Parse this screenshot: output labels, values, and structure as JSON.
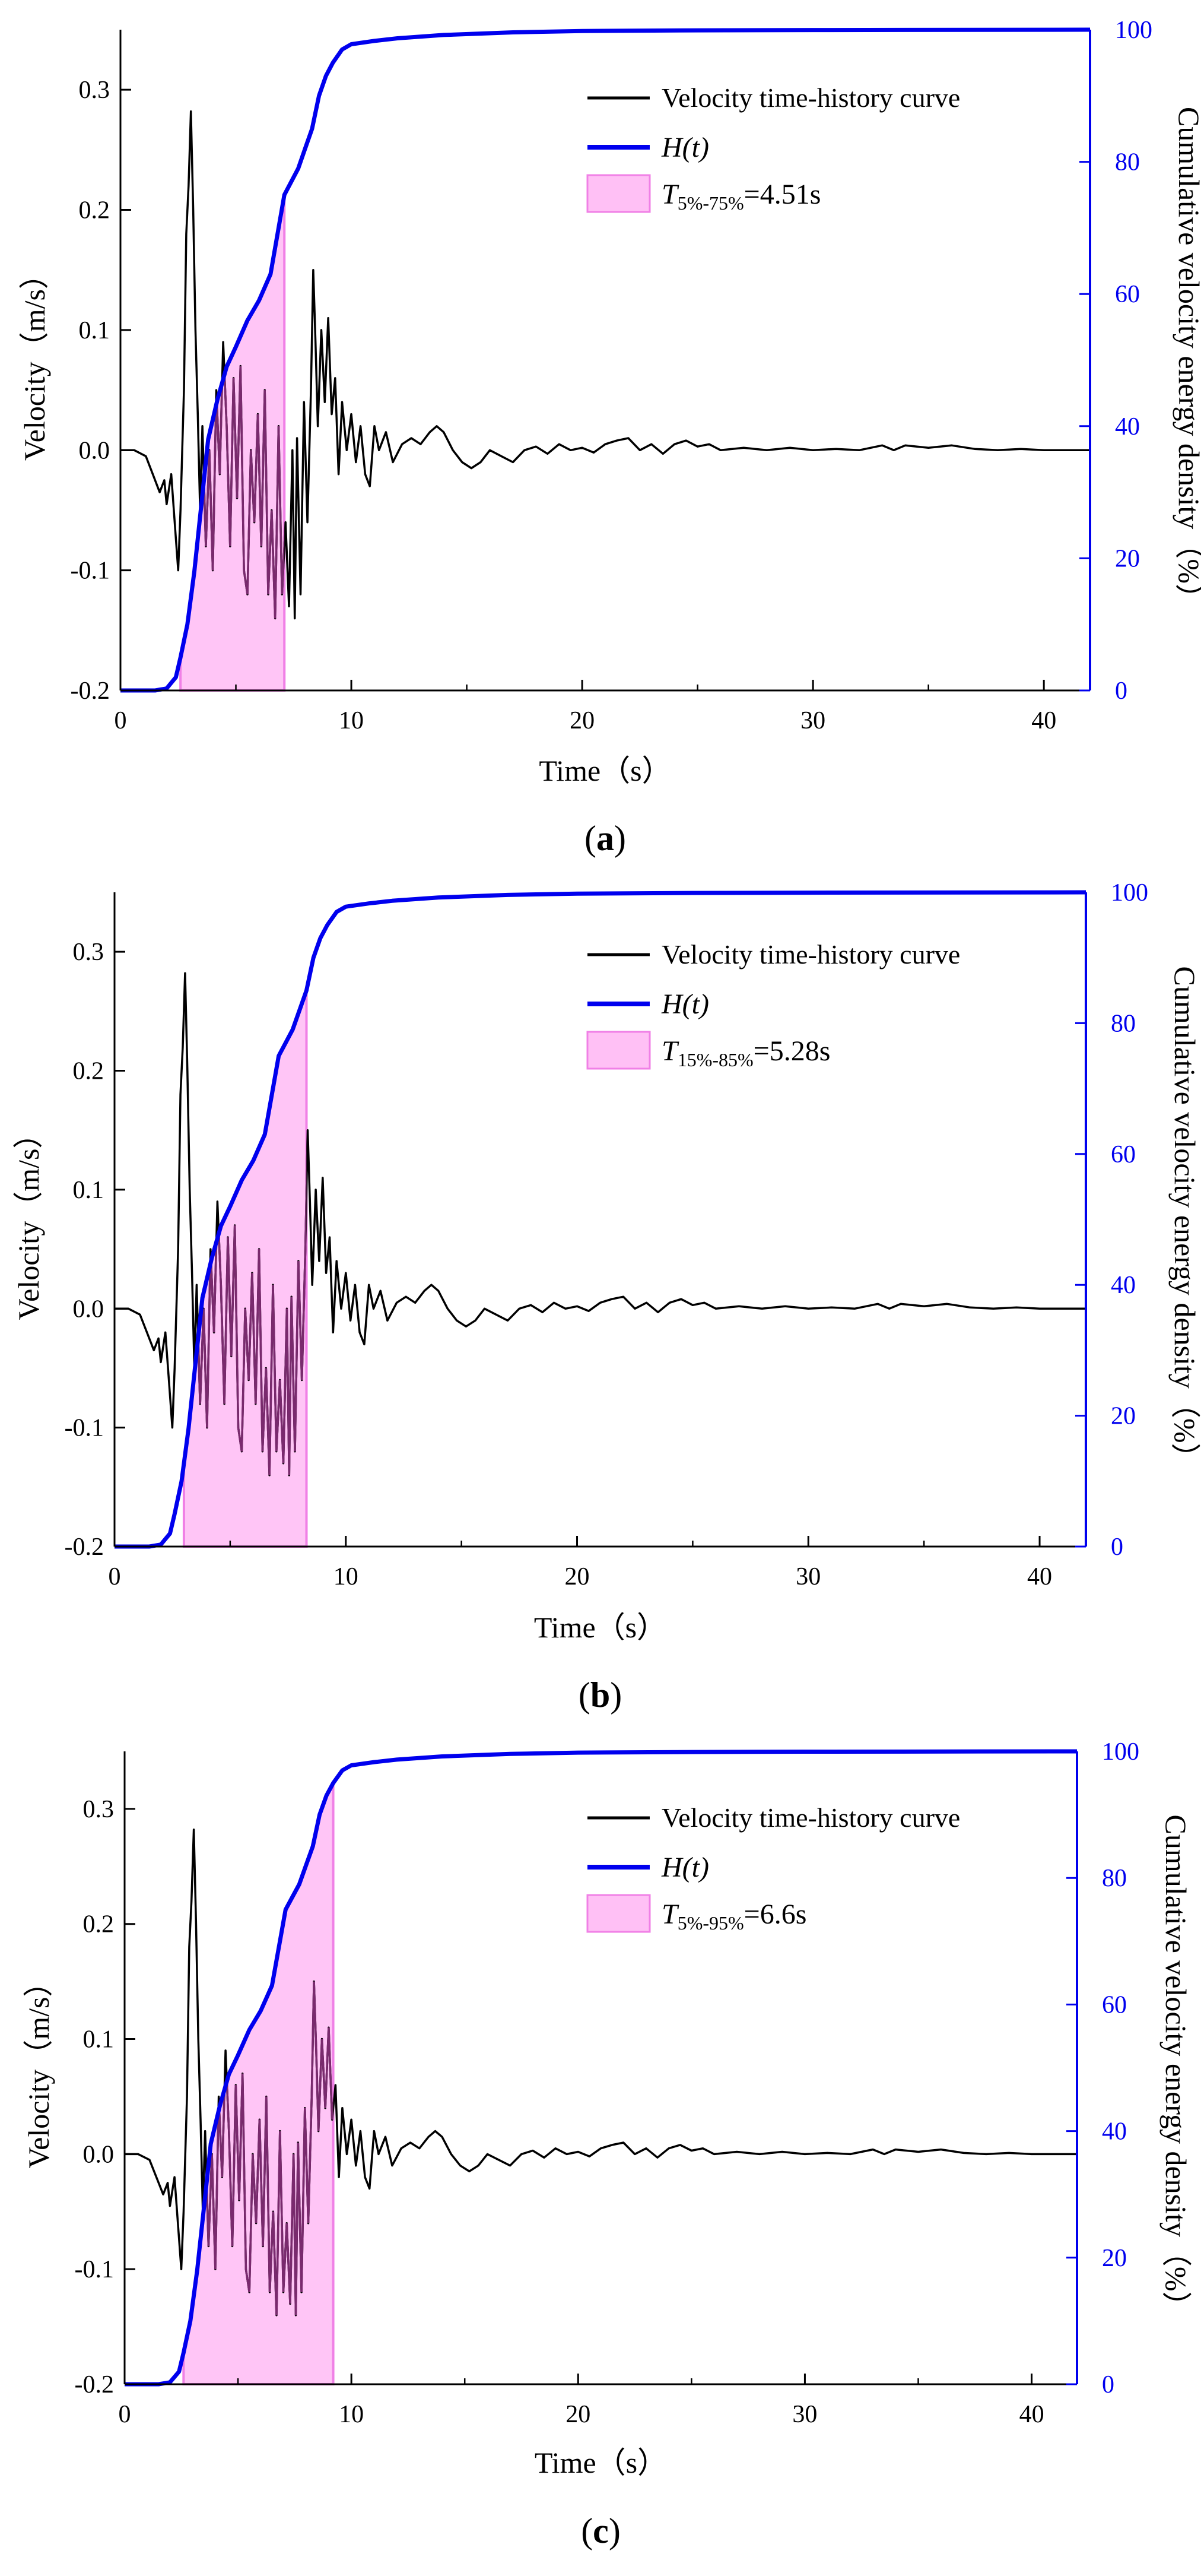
{
  "figure": {
    "x_axis_label": "Time（s）",
    "left_axis_label": "Velocity（m/s）",
    "right_axis_label": "Cumulative velocity energy density（%）",
    "legend_velocity": "Velocity time-history curve",
    "legend_h_prefix": "H",
    "legend_h_suffix": "(t)",
    "colors": {
      "velocity": "#000000",
      "h_curve": "#0000ee",
      "fill": "#ffc0f5",
      "fill_edge": "#f080e6",
      "right_axis": "#0000ee"
    }
  },
  "panels": [
    {
      "label": "a",
      "legend": {
        "prefix": "T",
        "subscript": "5%-75%",
        "value": "=4.51s"
      },
      "shade_range": [
        2.6,
        7.1
      ]
    },
    {
      "label": "b",
      "legend": {
        "prefix": "T",
        "subscript": "15%-85%",
        "value": "=5.28s"
      },
      "shade_range": [
        3.0,
        8.3
      ]
    },
    {
      "label": "c",
      "legend": {
        "prefix": "T",
        "subscript": "5%-95%",
        "value": "=6.6s"
      },
      "shade_range": [
        2.6,
        9.2
      ]
    }
  ],
  "chart_data": [
    {
      "type": "line",
      "panel": "a",
      "xlabel": "Time（s）",
      "ylabel": "Velocity（m/s）",
      "y2label": "Cumulative velocity energy density（%）",
      "xlim": [
        0,
        42
      ],
      "ylim": [
        -0.2,
        0.35
      ],
      "y2lim": [
        0,
        100
      ],
      "xticks": [
        0,
        10,
        20,
        30,
        40
      ],
      "yticks": [
        -0.2,
        -0.1,
        0.0,
        0.1,
        0.2,
        0.3
      ],
      "y2ticks": [
        0,
        20,
        40,
        60,
        80,
        100
      ],
      "shaded_interval": {
        "label": "T5%-75%=4.51s",
        "start": 2.6,
        "end": 7.1
      },
      "series": [
        {
          "name": "Velocity time-history curve",
          "axis": "left",
          "points": [
            [
              0,
              0
            ],
            [
              0.6,
              0
            ],
            [
              1.1,
              -0.005
            ],
            [
              1.4,
              -0.02
            ],
            [
              1.7,
              -0.035
            ],
            [
              1.9,
              -0.025
            ],
            [
              2.0,
              -0.045
            ],
            [
              2.2,
              -0.02
            ],
            [
              2.35,
              -0.06
            ],
            [
              2.5,
              -0.1
            ],
            [
              2.6,
              -0.05
            ],
            [
              2.75,
              0.05
            ],
            [
              2.85,
              0.18
            ],
            [
              2.95,
              0.22
            ],
            [
              3.05,
              0.282
            ],
            [
              3.15,
              0.2
            ],
            [
              3.25,
              0.1
            ],
            [
              3.35,
              0.03
            ],
            [
              3.45,
              -0.05
            ],
            [
              3.55,
              0.02
            ],
            [
              3.7,
              -0.08
            ],
            [
              3.85,
              0.0
            ],
            [
              4.0,
              -0.1
            ],
            [
              4.15,
              0.05
            ],
            [
              4.3,
              -0.02
            ],
            [
              4.45,
              0.09
            ],
            [
              4.6,
              0.02
            ],
            [
              4.75,
              -0.08
            ],
            [
              4.9,
              0.06
            ],
            [
              5.05,
              -0.04
            ],
            [
              5.2,
              0.07
            ],
            [
              5.35,
              -0.1
            ],
            [
              5.5,
              -0.12
            ],
            [
              5.65,
              0.0
            ],
            [
              5.8,
              -0.06
            ],
            [
              5.95,
              0.03
            ],
            [
              6.1,
              -0.08
            ],
            [
              6.25,
              0.05
            ],
            [
              6.4,
              -0.12
            ],
            [
              6.55,
              -0.05
            ],
            [
              6.7,
              -0.14
            ],
            [
              6.85,
              0.02
            ],
            [
              7.0,
              -0.12
            ],
            [
              7.15,
              -0.06
            ],
            [
              7.3,
              -0.13
            ],
            [
              7.45,
              0.0
            ],
            [
              7.55,
              -0.14
            ],
            [
              7.65,
              0.01
            ],
            [
              7.8,
              -0.12
            ],
            [
              7.95,
              0.04
            ],
            [
              8.1,
              -0.06
            ],
            [
              8.25,
              0.05
            ],
            [
              8.35,
              0.15
            ],
            [
              8.45,
              0.09
            ],
            [
              8.55,
              0.02
            ],
            [
              8.7,
              0.1
            ],
            [
              8.85,
              0.04
            ],
            [
              9.0,
              0.11
            ],
            [
              9.15,
              0.03
            ],
            [
              9.3,
              0.06
            ],
            [
              9.45,
              -0.02
            ],
            [
              9.6,
              0.04
            ],
            [
              9.8,
              0.0
            ],
            [
              10.0,
              0.03
            ],
            [
              10.2,
              -0.01
            ],
            [
              10.4,
              0.02
            ],
            [
              10.6,
              -0.02
            ],
            [
              10.8,
              -0.03
            ],
            [
              11.0,
              0.02
            ],
            [
              11.2,
              0.0
            ],
            [
              11.5,
              0.015
            ],
            [
              11.8,
              -0.01
            ],
            [
              12.2,
              0.005
            ],
            [
              12.6,
              0.01
            ],
            [
              13.0,
              0.005
            ],
            [
              13.4,
              0.015
            ],
            [
              13.7,
              0.02
            ],
            [
              14.0,
              0.015
            ],
            [
              14.4,
              0.0
            ],
            [
              14.8,
              -0.01
            ],
            [
              15.2,
              -0.015
            ],
            [
              15.6,
              -0.01
            ],
            [
              16.0,
              0.0
            ],
            [
              16.5,
              -0.005
            ],
            [
              17.0,
              -0.01
            ],
            [
              17.5,
              0.0
            ],
            [
              18.0,
              0.003
            ],
            [
              18.5,
              -0.003
            ],
            [
              19.0,
              0.005
            ],
            [
              19.5,
              0.0
            ],
            [
              20.0,
              0.002
            ],
            [
              20.5,
              -0.002
            ],
            [
              21.0,
              0.005
            ],
            [
              21.5,
              0.008
            ],
            [
              22.0,
              0.01
            ],
            [
              22.5,
              0.0
            ],
            [
              23.0,
              0.005
            ],
            [
              23.5,
              -0.003
            ],
            [
              24.0,
              0.005
            ],
            [
              24.5,
              0.008
            ],
            [
              25.0,
              0.003
            ],
            [
              25.5,
              0.005
            ],
            [
              26.0,
              0.0
            ],
            [
              27.0,
              0.002
            ],
            [
              28.0,
              0.0
            ],
            [
              29.0,
              0.002
            ],
            [
              30.0,
              0.0
            ],
            [
              31.0,
              0.001
            ],
            [
              32.0,
              0.0
            ],
            [
              33.0,
              0.004
            ],
            [
              33.5,
              0.0
            ],
            [
              34.0,
              0.004
            ],
            [
              35.0,
              0.002
            ],
            [
              36.0,
              0.004
            ],
            [
              37.0,
              0.001
            ],
            [
              38.0,
              0.0
            ],
            [
              39.0,
              0.001
            ],
            [
              40.0,
              0.0
            ],
            [
              41.0,
              0.0
            ],
            [
              42.0,
              0.0
            ]
          ]
        },
        {
          "name": "H(t)",
          "axis": "right",
          "points": [
            [
              0,
              0
            ],
            [
              1.5,
              0
            ],
            [
              2.0,
              0.3
            ],
            [
              2.4,
              2
            ],
            [
              2.6,
              5
            ],
            [
              2.9,
              10
            ],
            [
              3.2,
              18
            ],
            [
              3.5,
              28
            ],
            [
              3.8,
              38
            ],
            [
              4.2,
              44
            ],
            [
              4.6,
              49
            ],
            [
              5.0,
              52
            ],
            [
              5.5,
              56
            ],
            [
              6.0,
              59
            ],
            [
              6.5,
              63
            ],
            [
              7.1,
              75
            ],
            [
              7.4,
              77
            ],
            [
              7.7,
              79
            ],
            [
              8.0,
              82
            ],
            [
              8.3,
              85
            ],
            [
              8.6,
              90
            ],
            [
              8.9,
              93
            ],
            [
              9.2,
              95
            ],
            [
              9.6,
              97
            ],
            [
              10.0,
              97.8
            ],
            [
              11.0,
              98.3
            ],
            [
              12.0,
              98.7
            ],
            [
              14.0,
              99.2
            ],
            [
              17.0,
              99.6
            ],
            [
              20.0,
              99.8
            ],
            [
              25.0,
              99.9
            ],
            [
              30.0,
              99.95
            ],
            [
              42.0,
              100
            ]
          ]
        }
      ]
    },
    {
      "type": "line",
      "panel": "b",
      "xlabel": "Time（s）",
      "ylabel": "Velocity（m/s）",
      "y2label": "Cumulative velocity energy density（%）",
      "xlim": [
        0,
        42
      ],
      "ylim": [
        -0.2,
        0.35
      ],
      "y2lim": [
        0,
        100
      ],
      "xticks": [
        0,
        10,
        20,
        30,
        40
      ],
      "yticks": [
        -0.2,
        -0.1,
        0.0,
        0.1,
        0.2,
        0.3
      ],
      "y2ticks": [
        0,
        20,
        40,
        60,
        80,
        100
      ],
      "shaded_interval": {
        "label": "T15%-85%=5.28s",
        "start": 3.0,
        "end": 8.3
      },
      "series": [
        {
          "name": "Velocity time-history curve",
          "axis": "left",
          "same_as_panel": "a"
        },
        {
          "name": "H(t)",
          "axis": "right",
          "same_as_panel": "a"
        }
      ]
    },
    {
      "type": "line",
      "panel": "c",
      "xlabel": "Time（s）",
      "ylabel": "Velocity（m/s）",
      "y2label": "Cumulative velocity energy density（%）",
      "xlim": [
        0,
        42
      ],
      "ylim": [
        -0.2,
        0.35
      ],
      "y2lim": [
        0,
        100
      ],
      "xticks": [
        0,
        10,
        20,
        30,
        40
      ],
      "yticks": [
        -0.2,
        -0.1,
        0.0,
        0.1,
        0.2,
        0.3
      ],
      "y2ticks": [
        0,
        20,
        40,
        60,
        80,
        100
      ],
      "shaded_interval": {
        "label": "T5%-95%=6.6s",
        "start": 2.6,
        "end": 9.2
      },
      "series": [
        {
          "name": "Velocity time-history curve",
          "axis": "left",
          "same_as_panel": "a"
        },
        {
          "name": "H(t)",
          "axis": "right",
          "same_as_panel": "a"
        }
      ]
    }
  ]
}
